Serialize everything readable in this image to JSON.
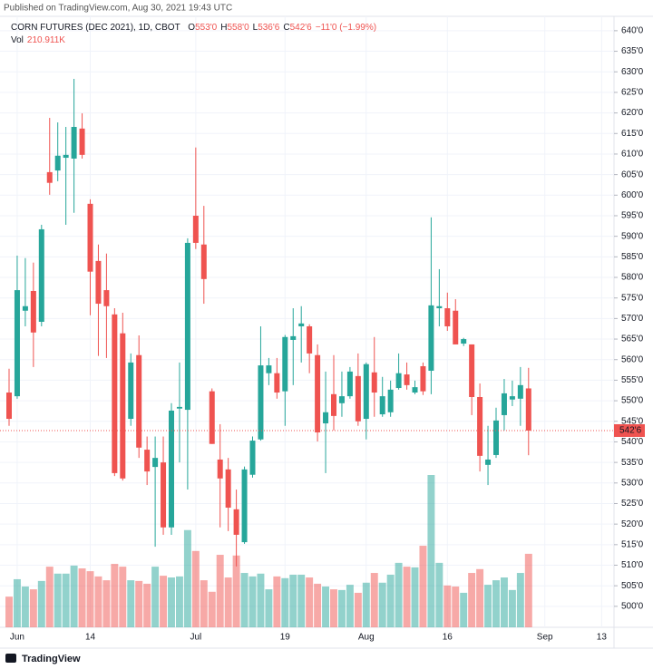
{
  "header": {
    "published": "Published on TradingView.com, Aug 30, 2021 19:43 UTC",
    "footer": "TradingView"
  },
  "chart_data": {
    "type": "candlestick",
    "title": "CORN FUTURES (DEC 2021), 1D, CBOT",
    "legend_ohlc": [
      {
        "key": "O",
        "value": "553'0"
      },
      {
        "key": "H",
        "value": "558'0"
      },
      {
        "key": "L",
        "value": "536'6"
      },
      {
        "key": "C",
        "value": "542'6"
      }
    ],
    "change": "−11'0 (−1.99%)",
    "volume_label": "Vol",
    "volume_value": "210.911K",
    "last_price_label": "542'6",
    "up_color": "#26a69a",
    "down_color": "#ef5350",
    "categories": [
      null,
      "Jun",
      null,
      null,
      null,
      null,
      null,
      null,
      null,
      null,
      "14",
      null,
      null,
      null,
      null,
      null,
      null,
      null,
      null,
      null,
      null,
      null,
      null,
      "Jul",
      null,
      null,
      null,
      null,
      null,
      null,
      null,
      null,
      null,
      null,
      "19",
      null,
      null,
      null,
      null,
      null,
      null,
      null,
      null,
      null,
      "Aug",
      null,
      null,
      null,
      null,
      null,
      null,
      null,
      null,
      null,
      "16",
      null,
      null,
      null,
      null,
      null,
      null,
      null,
      null,
      null,
      null,
      null,
      "Sep",
      null,
      null,
      null,
      null,
      null,
      null,
      "13"
    ],
    "open": [
      552.0,
      551.1,
      571.9,
      576.7,
      569.2,
      605.6,
      606.0,
      609.1,
      608.9,
      616.2,
      597.9,
      584.0,
      576.9,
      571.0,
      566.4,
      545.6,
      561.1,
      538.1,
      533.9,
      535.0,
      519.2,
      548.1,
      547.8,
      595.0,
      588.0,
      552.3,
      535.7,
      533.3,
      523.6,
      515.6,
      532.0,
      540.6,
      556.7,
      556.7,
      552.3,
      564.8,
      568.1,
      568.1,
      561.1,
      544.5,
      551.6,
      549.4,
      551.1,
      556.0,
      545.6,
      556.9,
      546.7,
      547.2,
      553.1,
      556.4,
      552.0,
      558.4,
      557.3,
      572.5,
      572.5,
      571.9,
      563.9,
      563.7,
      550.9,
      534.4,
      536.8,
      546.5,
      550.3,
      550.5,
      553.0,
      null,
      null,
      null,
      null,
      null,
      null,
      null,
      null,
      null
    ],
    "high": [
      557.8,
      585.3,
      584.7,
      583.6,
      592.8,
      618.8,
      617.7,
      616.6,
      628.3,
      619.9,
      599.0,
      588.0,
      585.8,
      572.5,
      571.4,
      561.5,
      565.9,
      541.3,
      541.3,
      541.3,
      549.4,
      559.3,
      589.5,
      611.6,
      597.4,
      553.0,
      544.3,
      536.1,
      528.4,
      534.0,
      541.3,
      568.1,
      560.4,
      560.4,
      566.0,
      572.5,
      573.0,
      568.6,
      563.7,
      557.1,
      561.1,
      557.1,
      558.2,
      561.5,
      559.3,
      565.5,
      555.8,
      554.9,
      561.5,
      559.3,
      554.9,
      559.3,
      594.6,
      582.0,
      576.3,
      574.7,
      565.3,
      563.7,
      554.2,
      543.9,
      548.3,
      555.3,
      554.9,
      558.2,
      558.0,
      null,
      null,
      null,
      null,
      null,
      null,
      null,
      null,
      null
    ],
    "low": [
      543.9,
      550.5,
      568.1,
      558.2,
      568.1,
      600.1,
      603.4,
      592.8,
      595.7,
      608.9,
      570.8,
      560.9,
      560.4,
      531.7,
      530.6,
      543.9,
      536.1,
      529.5,
      514.5,
      517.4,
      517.4,
      535.0,
      528.4,
      586.9,
      573.6,
      539.5,
      519.2,
      518.3,
      509.7,
      515.2,
      531.3,
      540.3,
      553.8,
      550.5,
      543.9,
      553.8,
      559.3,
      556.7,
      540.1,
      532.4,
      542.8,
      546.1,
      550.5,
      543.9,
      540.6,
      546.1,
      546.1,
      546.1,
      552.7,
      552.7,
      551.6,
      551.4,
      551.6,
      568.1,
      567.0,
      563.7,
      563.3,
      546.5,
      532.8,
      529.5,
      536.1,
      542.8,
      548.7,
      543.9,
      536.75,
      null,
      null,
      null,
      null,
      null,
      null,
      null,
      null,
      null
    ],
    "close": [
      545.6,
      576.9,
      573.0,
      566.6,
      591.7,
      603.0,
      609.6,
      609.8,
      616.6,
      609.8,
      581.4,
      573.6,
      573.0,
      532.4,
      531.1,
      559.3,
      538.6,
      532.8,
      536.1,
      519.2,
      547.6,
      548.5,
      588.4,
      588.4,
      579.6,
      539.5,
      531.1,
      524.0,
      517.4,
      533.3,
      540.3,
      558.6,
      558.6,
      552.0,
      565.5,
      565.7,
      568.8,
      561.5,
      542.3,
      547.2,
      546.3,
      551.1,
      557.1,
      545.0,
      558.9,
      552.0,
      551.1,
      552.7,
      556.7,
      553.8,
      553.3,
      552.3,
      573.2,
      573.0,
      568.1,
      563.7,
      565.0,
      550.9,
      536.6,
      535.7,
      545.2,
      551.8,
      551.1,
      553.8,
      542.75,
      null,
      null,
      null,
      null,
      null,
      null,
      null,
      null,
      null
    ],
    "volume": [
      88,
      138,
      117,
      109,
      133,
      174,
      154,
      154,
      177,
      169,
      161,
      146,
      135,
      182,
      174,
      135,
      133,
      125,
      174,
      148,
      143,
      146,
      279,
      219,
      135,
      102,
      208,
      143,
      206,
      156,
      146,
      154,
      109,
      146,
      141,
      151,
      151,
      143,
      125,
      117,
      109,
      107,
      122,
      99,
      128,
      156,
      128,
      151,
      185,
      174,
      172,
      234,
      437,
      185,
      120,
      117,
      99,
      156,
      167,
      122,
      135,
      143,
      107,
      156,
      210.911,
      null,
      null,
      null,
      null,
      null,
      null,
      null,
      null,
      null
    ],
    "ylim": [
      494.9,
      643.5
    ],
    "yticks": [
      {
        "value": 640,
        "label": "640'0"
      },
      {
        "value": 635,
        "label": "635'0"
      },
      {
        "value": 630,
        "label": "630'0"
      },
      {
        "value": 625,
        "label": "625'0"
      },
      {
        "value": 620,
        "label": "620'0"
      },
      {
        "value": 615,
        "label": "615'0"
      },
      {
        "value": 610,
        "label": "610'0"
      },
      {
        "value": 605,
        "label": "605'0"
      },
      {
        "value": 600,
        "label": "600'0"
      },
      {
        "value": 595,
        "label": "595'0"
      },
      {
        "value": 590,
        "label": "590'0"
      },
      {
        "value": 585,
        "label": "585'0"
      },
      {
        "value": 580,
        "label": "580'0"
      },
      {
        "value": 575,
        "label": "575'0"
      },
      {
        "value": 570,
        "label": "570'0"
      },
      {
        "value": 565,
        "label": "565'0"
      },
      {
        "value": 560,
        "label": "560'0"
      },
      {
        "value": 555,
        "label": "555'0"
      },
      {
        "value": 550,
        "label": "550'0"
      },
      {
        "value": 545,
        "label": "545'0"
      },
      {
        "value": 540,
        "label": "540'0"
      },
      {
        "value": 535,
        "label": "535'0"
      },
      {
        "value": 530,
        "label": "530'0"
      },
      {
        "value": 525,
        "label": "525'0"
      },
      {
        "value": 520,
        "label": "520'0"
      },
      {
        "value": 515,
        "label": "515'0"
      },
      {
        "value": 510,
        "label": "510'0"
      },
      {
        "value": 505,
        "label": "505'0"
      },
      {
        "value": 500,
        "label": "500'0"
      }
    ],
    "grid": true
  }
}
